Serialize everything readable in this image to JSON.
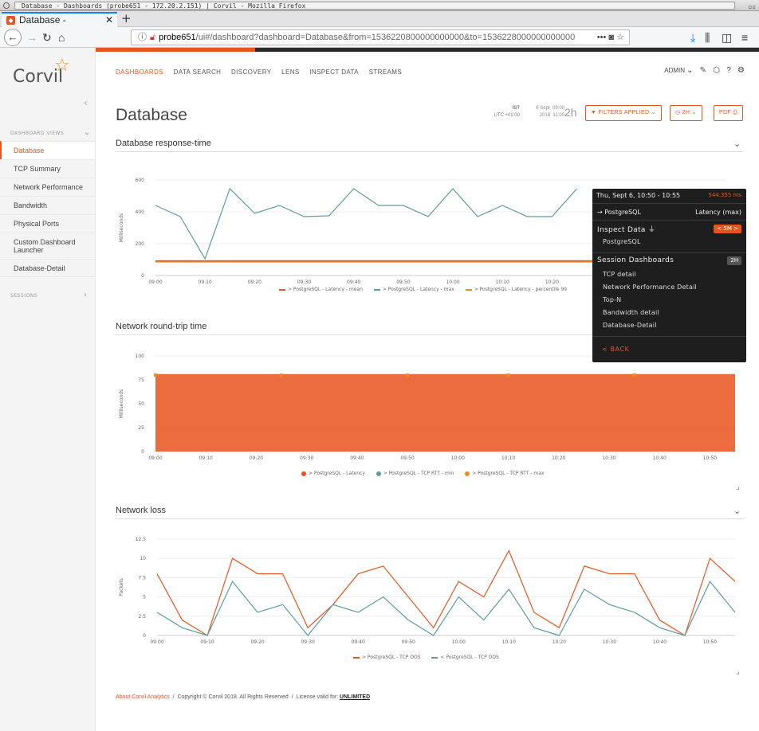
{
  "window": {
    "title": "Database - Dashboards (probe651 - 172.20.2.151) | Corvil - Mozilla Firefox"
  },
  "browser": {
    "tab_title": "Database - Dashboards (p",
    "url_host": "probe651",
    "url_path": "/ui#/dashboard?dashboard=Database&from=1536220800000000000&to=1536228000000000000",
    "icons": [
      "info-icon",
      "lock-warning-icon",
      "bookmark-icon",
      "download-icon",
      "library-icon",
      "sidebar-icon",
      "menu-icon"
    ]
  },
  "sidebar": {
    "logo_text": "Corvil",
    "section_dashboard_views": "DASHBOARD VIEWS",
    "section_sessions": "SESSIONS",
    "items": [
      {
        "label": "Database",
        "active": true
      },
      {
        "label": "TCP Summary"
      },
      {
        "label": "Network Performance"
      },
      {
        "label": "Bandwidth"
      },
      {
        "label": "Physical Ports"
      },
      {
        "label": "Custom Dashboard Launcher"
      },
      {
        "label": "Database-Detail"
      }
    ]
  },
  "topnav": {
    "items": [
      "DASHBOARDS",
      "DATA SEARCH",
      "DISCOVERY",
      "LENS",
      "INSPECT DATA",
      "STREAMS"
    ],
    "user": "ADMIN"
  },
  "page": {
    "title": "Database",
    "tz_label": "IST",
    "tz_offset": "UTC +01:00",
    "range_date1": "6 Sept",
    "range_date2": "2018",
    "range_time1": "09:00",
    "range_time2": "11:00",
    "range_len": "2h",
    "filters_btn": "FILTERS APPLIED",
    "duration_btn": "2H",
    "pdf_btn": "PDF"
  },
  "charts": [
    {
      "title": "Database response-time",
      "ylabel": "Milliseconds",
      "legend": [
        {
          "name": "> PostgreSQL - Latency - mean",
          "color": "#e8541d"
        },
        {
          "name": "> PostgreSQL - Latency - max",
          "color": "#5c9c9c"
        },
        {
          "name": "> PostgreSQL - Latency - percentile 99",
          "color": "#f0901c"
        }
      ]
    },
    {
      "title": "Network round-trip time",
      "ylabel": "Milliseconds",
      "legend": [
        {
          "name": "> PostgreSQL - Latency",
          "color": "#e8541d"
        },
        {
          "name": "> PostgreSQL - TCP RTT - min",
          "color": "#5c9c9c"
        },
        {
          "name": "> PostgreSQL - TCP RTT - max",
          "color": "#f0901c"
        }
      ]
    },
    {
      "title": "Network loss",
      "ylabel": "Packets",
      "legend": [
        {
          "name": "> PostgreSQL - TCP OOS",
          "color": "#e8541d"
        },
        {
          "name": "< PostgreSQL - TCP OOS",
          "color": "#5c9c9c"
        }
      ]
    }
  ],
  "chart_data": [
    {
      "type": "line",
      "ylabel": "Milliseconds",
      "ylim": [
        0,
        600
      ],
      "yticks": [
        0,
        200,
        400,
        600
      ],
      "x": [
        "09:00",
        "09:05",
        "09:10",
        "09:15",
        "09:20",
        "09:25",
        "09:30",
        "09:35",
        "09:40",
        "09:45",
        "09:50",
        "09:55",
        "10:00",
        "10:05",
        "10:10",
        "10:15",
        "10:20",
        "10:25",
        "10:30",
        "10:35",
        "10:40",
        "10:45",
        "10:50",
        "10:55"
      ],
      "xticks": [
        "09:00",
        "09:10",
        "09:20",
        "09:30",
        "09:40",
        "09:50",
        "10:00",
        "10:10",
        "10:20"
      ],
      "series": [
        {
          "name": "> PostgreSQL - Latency - mean",
          "color": "#e8541d",
          "values": [
            90,
            90,
            90,
            90,
            90,
            90,
            90,
            90,
            90,
            90,
            90,
            90,
            90,
            90,
            90,
            90,
            90,
            90,
            90,
            90,
            90,
            90,
            90,
            90
          ]
        },
        {
          "name": "> PostgreSQL - Latency - max",
          "color": "#5c9c9c",
          "values": [
            440,
            370,
            105,
            545,
            390,
            440,
            370,
            375,
            545,
            440,
            440,
            370,
            545,
            370,
            440,
            370,
            370,
            545,
            null,
            null,
            null,
            null,
            544.355,
            470
          ]
        },
        {
          "name": "> PostgreSQL - Latency - percentile 99",
          "color": "#f0901c",
          "values": [
            85,
            85,
            85,
            85,
            85,
            85,
            85,
            85,
            85,
            85,
            85,
            85,
            85,
            85,
            85,
            85,
            85,
            85,
            85,
            85,
            85,
            85,
            85,
            85
          ]
        }
      ]
    },
    {
      "type": "area",
      "ylabel": "Milliseconds",
      "ylim": [
        0,
        100
      ],
      "yticks": [
        0,
        25,
        50,
        75,
        100
      ],
      "x": [
        "09:00",
        "09:05",
        "09:10",
        "09:15",
        "09:20",
        "09:25",
        "09:30",
        "09:35",
        "09:40",
        "09:45",
        "09:50",
        "09:55",
        "10:00",
        "10:05",
        "10:10",
        "10:15",
        "10:20",
        "10:25",
        "10:30",
        "10:35",
        "10:40",
        "10:45",
        "10:50",
        "10:55"
      ],
      "xticks": [
        "09:00",
        "09:10",
        "09:20",
        "09:30",
        "09:40",
        "09:50",
        "10:00",
        "10:10",
        "10:20",
        "10:30",
        "10:40",
        "10:50"
      ],
      "series": [
        {
          "name": "> PostgreSQL - Latency",
          "color": "#e8541d",
          "values": [
            81,
            81,
            81,
            81,
            81,
            81,
            81,
            81,
            81,
            81,
            81,
            81,
            81,
            81,
            81,
            81,
            81,
            81,
            81,
            81,
            81,
            81,
            81,
            81
          ]
        }
      ],
      "markers": [
        {
          "x": "09:00",
          "y": 80
        },
        {
          "x": "09:25",
          "y": 80
        },
        {
          "x": "09:50",
          "y": 80
        },
        {
          "x": "10:10",
          "y": 80
        },
        {
          "x": "10:35",
          "y": 80
        }
      ]
    },
    {
      "type": "line",
      "ylabel": "Packets",
      "ylim": [
        0,
        12.5
      ],
      "yticks": [
        0,
        2.5,
        5,
        7.5,
        10,
        12.5
      ],
      "x": [
        "09:00",
        "09:05",
        "09:10",
        "09:15",
        "09:20",
        "09:25",
        "09:30",
        "09:35",
        "09:40",
        "09:45",
        "09:50",
        "09:55",
        "10:00",
        "10:05",
        "10:10",
        "10:15",
        "10:20",
        "10:25",
        "10:30",
        "10:35",
        "10:40",
        "10:45",
        "10:50",
        "10:55"
      ],
      "xticks": [
        "09:00",
        "09:10",
        "09:20",
        "09:30",
        "09:40",
        "09:50",
        "10:00",
        "10:10",
        "10:20",
        "10:30",
        "10:40",
        "10:50"
      ],
      "series": [
        {
          "name": "> PostgreSQL - TCP OOS",
          "color": "#e8541d",
          "values": [
            8,
            2,
            0,
            10,
            8,
            8,
            1,
            4,
            8,
            9,
            5,
            1,
            7,
            5,
            11,
            3,
            1,
            9,
            8,
            8,
            2,
            0,
            10,
            7
          ]
        },
        {
          "name": "< PostgreSQL - TCP OOS",
          "color": "#5c9c9c",
          "values": [
            3,
            1,
            0,
            7,
            3,
            4,
            0,
            4,
            3,
            5,
            2,
            0,
            5,
            2,
            6,
            1,
            0,
            6,
            4,
            3,
            1,
            0,
            7,
            3
          ]
        }
      ]
    }
  ],
  "popup": {
    "header": "Thu, Sept 6, 10:50 - 10:55",
    "header_value": "544.355 ms",
    "target": "→ PostgreSQL",
    "target_metric": "Latency (max)",
    "inspect_title": "Inspect Data",
    "inspect_tag": "< 5M >",
    "inspect_item": "PostgreSQL",
    "session_title": "Session Dashboards",
    "session_tag": "2H",
    "session_items": [
      "TCP detail",
      "Network Performance Detail",
      "Top-N",
      "Bandwidth detail",
      "Database-Detail"
    ],
    "back": "< BACK"
  },
  "footer": {
    "about": "About Corvil Analytics",
    "copyright": "Copyright © Corvil 2018. All Rights Reserved",
    "license_prefix": "License valid for:",
    "license": "UNLIMITED"
  }
}
